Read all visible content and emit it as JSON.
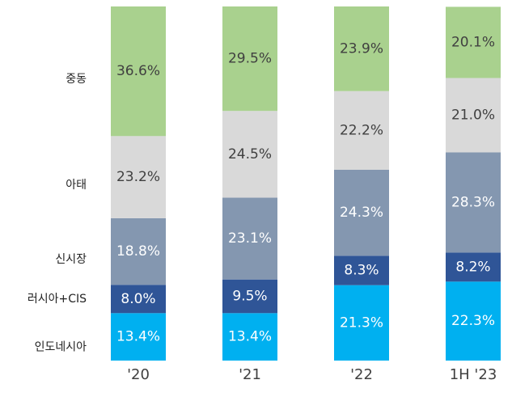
{
  "chart_data": {
    "type": "stacked_bar",
    "categories": [
      "'20",
      "'21",
      "'22",
      "1H '23"
    ],
    "ylim": [
      0,
      100
    ],
    "series": [
      {
        "name": "인도네시아",
        "color": "#00b0f0",
        "label_color": "#ffffff",
        "values": [
          13.4,
          13.4,
          21.3,
          22.3
        ],
        "value_labels": [
          "13.4%",
          "13.4%",
          "21.3%",
          "22.3%"
        ]
      },
      {
        "name": "러시아+CIS",
        "color": "#2f5597",
        "label_color": "#ffffff",
        "values": [
          8.0,
          9.5,
          8.3,
          8.2
        ],
        "value_labels": [
          "8.0%",
          "9.5%",
          "8.3%",
          "8.2%"
        ]
      },
      {
        "name": "신시장",
        "color": "#8497b0",
        "label_color": "#ffffff",
        "values": [
          18.8,
          23.1,
          24.3,
          28.3
        ],
        "value_labels": [
          "18.8%",
          "23.1%",
          "24.3%",
          "28.3%"
        ]
      },
      {
        "name": "아태",
        "color": "#d9d9d9",
        "label_color": "#404040",
        "values": [
          23.2,
          24.5,
          22.2,
          21.0
        ],
        "value_labels": [
          "23.2%",
          "24.5%",
          "22.2%",
          "21.0%"
        ]
      },
      {
        "name": "중동",
        "color": "#a9d18e",
        "label_color": "#404040",
        "values": [
          36.6,
          29.5,
          23.9,
          20.1
        ],
        "value_labels": [
          "36.6%",
          "29.5%",
          "23.9%",
          "20.1%"
        ]
      }
    ]
  }
}
